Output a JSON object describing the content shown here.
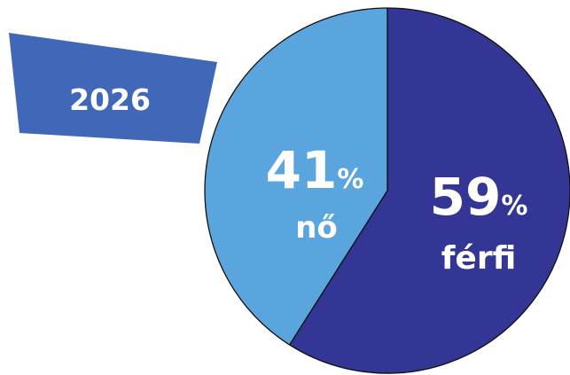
{
  "badge": {
    "label": "2026",
    "color": "#4067b8"
  },
  "chart_data": {
    "type": "pie",
    "title": "",
    "slices": [
      {
        "label": "férfi",
        "value": 59,
        "value_text": "59",
        "unit": "%",
        "color": "#333694"
      },
      {
        "label": "nő",
        "value": 41,
        "value_text": "41",
        "unit": "%",
        "color": "#5aa5dd"
      }
    ],
    "start_angle": "12 o'clock",
    "direction": "clockwise",
    "edge_color": "#111111"
  }
}
